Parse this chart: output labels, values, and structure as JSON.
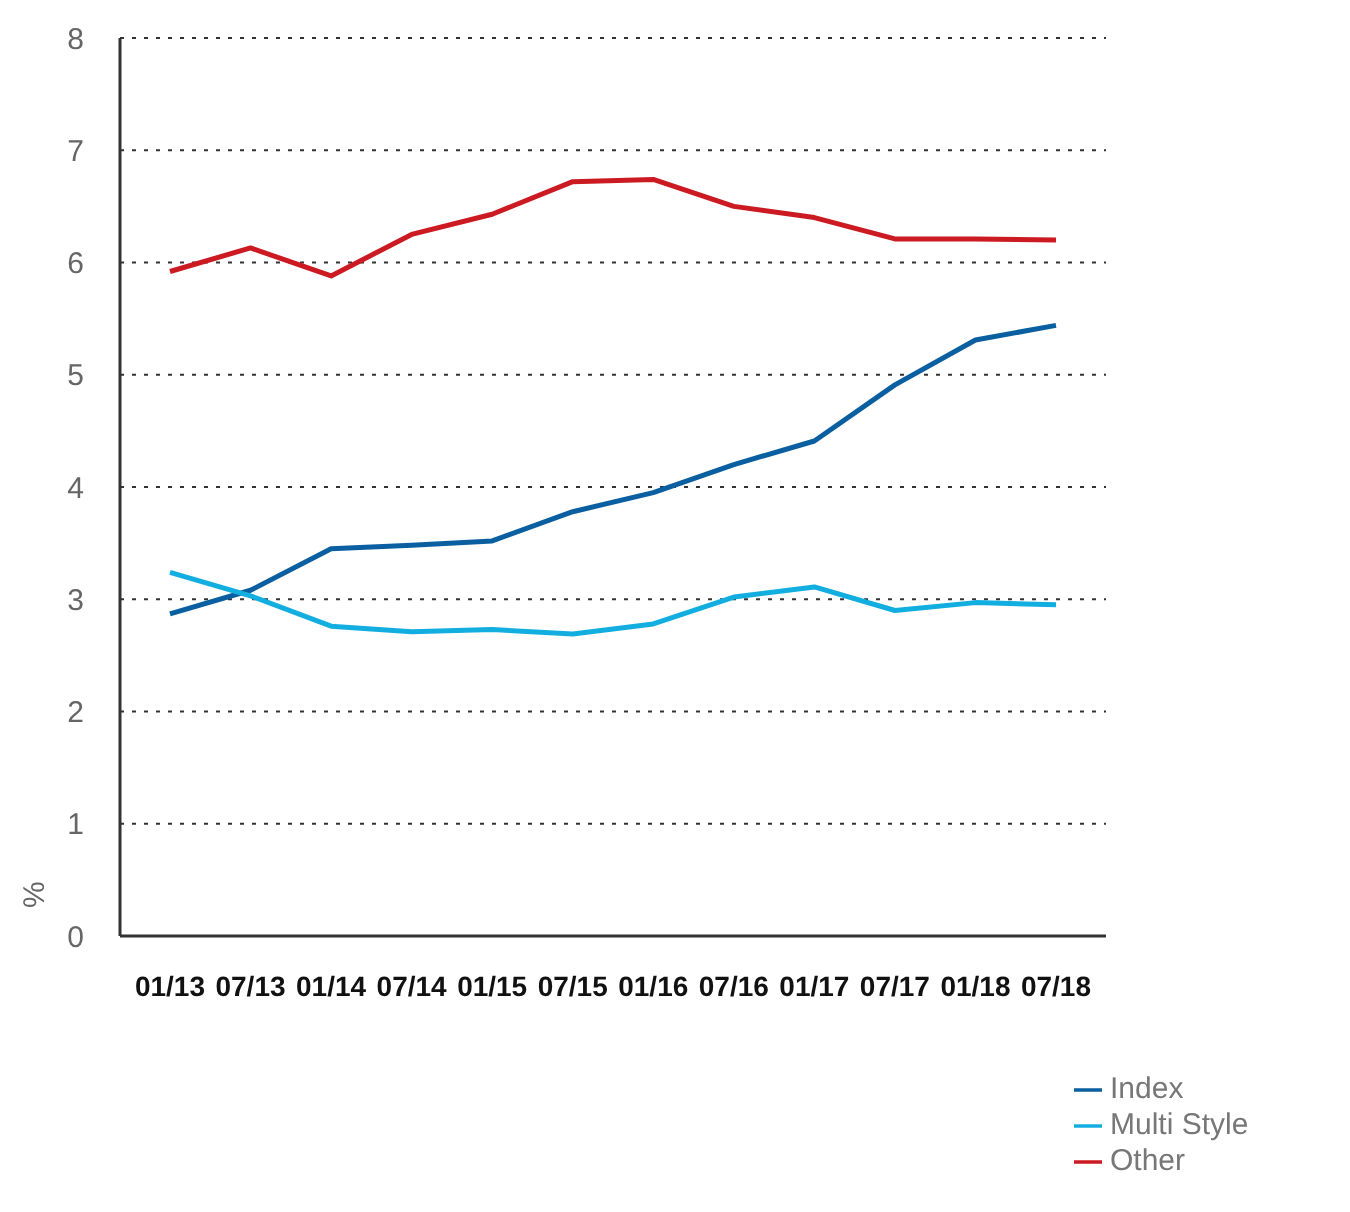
{
  "chart_data": {
    "type": "line",
    "ylabel": "%",
    "categories": [
      "01/13",
      "07/13",
      "01/14",
      "07/14",
      "01/15",
      "07/15",
      "01/16",
      "07/16",
      "01/17",
      "07/17",
      "01/18",
      "07/18"
    ],
    "series": [
      {
        "name": "Index",
        "color": "#0a5fa0",
        "values": [
          2.87,
          3.08,
          3.45,
          3.48,
          3.52,
          3.78,
          3.95,
          4.2,
          4.41,
          4.91,
          5.31,
          5.44
        ]
      },
      {
        "name": "Multi Style",
        "color": "#13aee0",
        "values": [
          3.24,
          3.03,
          2.76,
          2.71,
          2.73,
          2.69,
          2.78,
          3.02,
          3.11,
          2.9,
          2.97,
          2.95
        ]
      },
      {
        "name": "Other",
        "color": "#cc1a22",
        "values": [
          5.92,
          6.13,
          5.88,
          6.25,
          6.43,
          6.72,
          6.74,
          6.5,
          6.4,
          6.21,
          6.21,
          6.2
        ]
      }
    ],
    "ylim": [
      0,
      8
    ],
    "yticks": [
      0,
      1,
      2,
      3,
      4,
      5,
      6,
      7,
      8
    ],
    "grid": "y",
    "legend": "bottom right",
    "marker": "none",
    "line_style": "solid"
  }
}
